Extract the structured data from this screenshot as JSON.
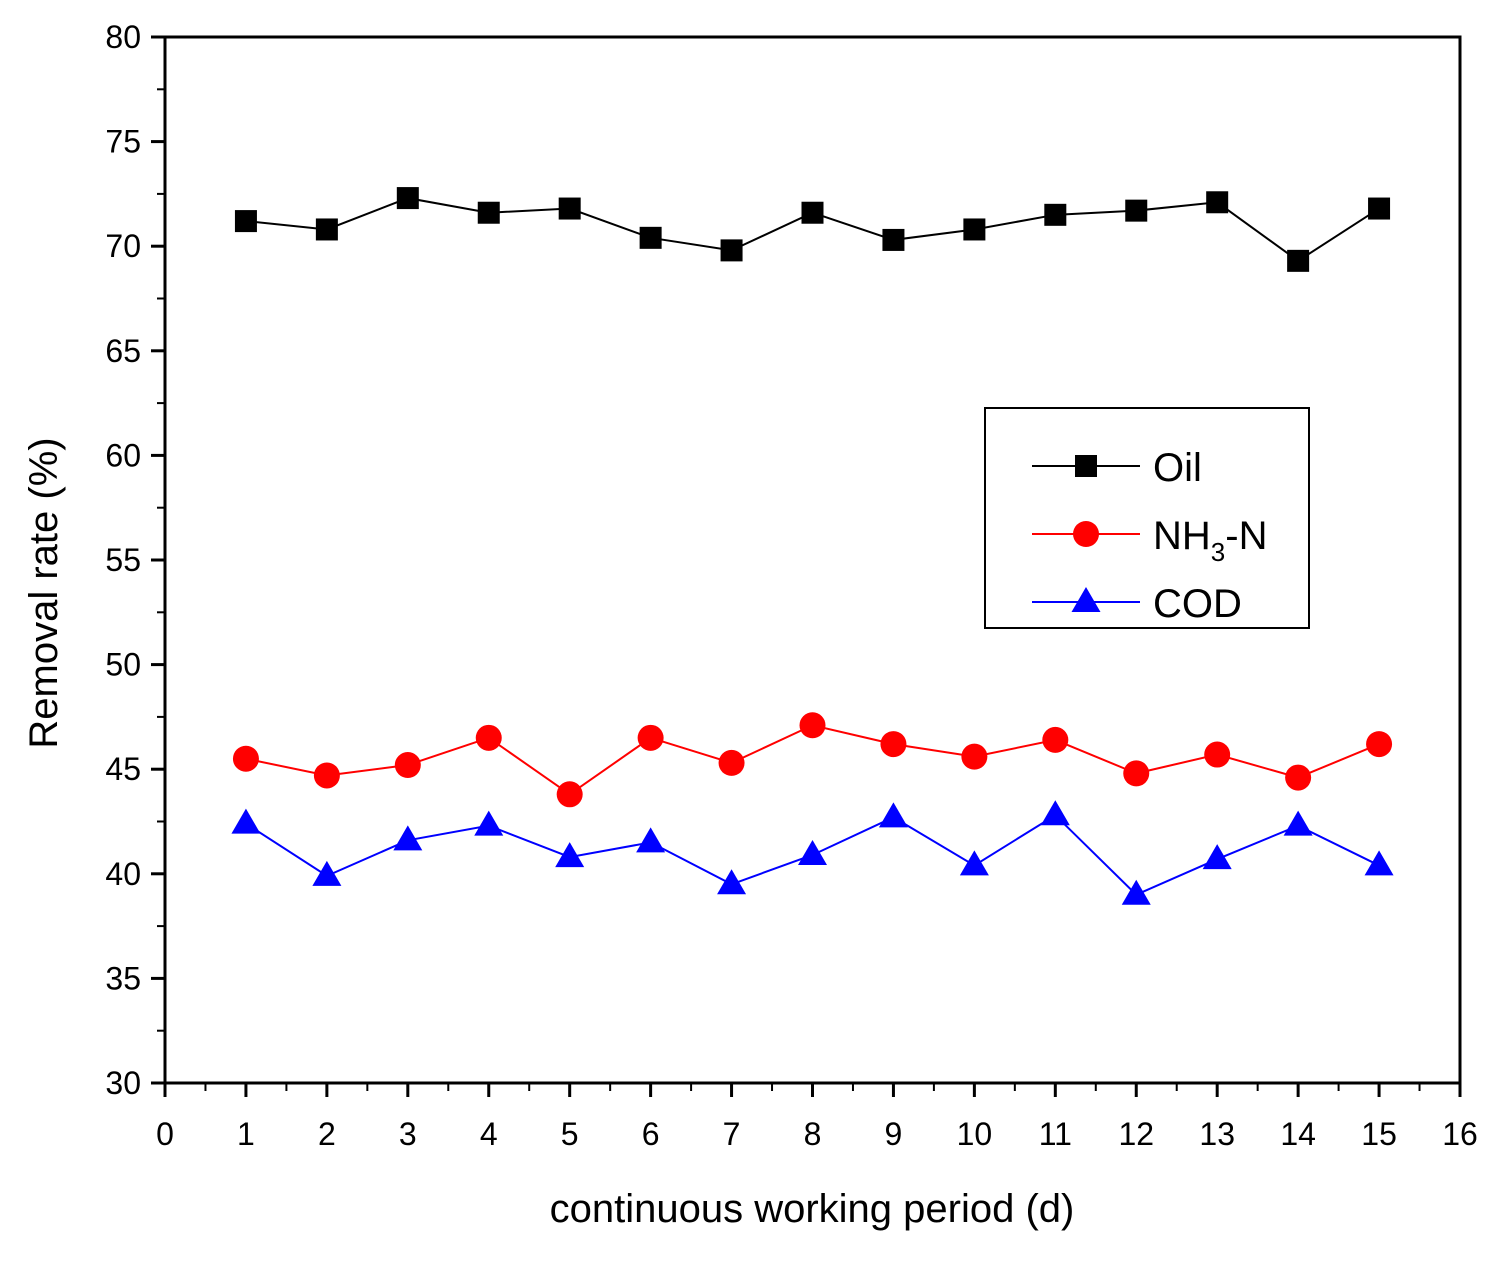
{
  "chart_data": {
    "type": "line",
    "title": "",
    "xlabel": "continuous working period (d)",
    "ylabel": "Removal rate (%)",
    "xlim": [
      0,
      16
    ],
    "ylim": [
      30,
      80
    ],
    "xticks": [
      "0",
      "1",
      "2",
      "3",
      "4",
      "5",
      "6",
      "7",
      "8",
      "9",
      "10",
      "11",
      "12",
      "13",
      "14",
      "15",
      "16"
    ],
    "yticks": [
      "30",
      "35",
      "40",
      "45",
      "50",
      "55",
      "60",
      "65",
      "70",
      "75",
      "80"
    ],
    "grid": false,
    "legend_position": "right-middle",
    "x": [
      1,
      2,
      3,
      4,
      5,
      6,
      7,
      8,
      9,
      10,
      11,
      12,
      13,
      14,
      15
    ],
    "series": [
      {
        "name": "Oil",
        "legend_main": "Oil",
        "legend_sub": "",
        "legend_tail": "",
        "marker": "square",
        "color": "#000000",
        "values": [
          71.2,
          70.8,
          72.3,
          71.6,
          71.8,
          70.4,
          69.8,
          71.6,
          70.3,
          70.8,
          71.5,
          71.7,
          72.1,
          69.3,
          71.8
        ]
      },
      {
        "name": "NH3-N",
        "legend_main": "NH",
        "legend_sub": "3",
        "legend_tail": "-N",
        "marker": "circle",
        "color": "#ff0000",
        "values": [
          45.5,
          44.7,
          45.2,
          46.5,
          43.8,
          46.5,
          45.3,
          47.1,
          46.2,
          45.6,
          46.4,
          44.8,
          45.7,
          44.6,
          46.2
        ]
      },
      {
        "name": "COD",
        "legend_main": "COD",
        "legend_sub": "",
        "legend_tail": "",
        "marker": "triangle",
        "color": "#0000ff",
        "values": [
          42.4,
          39.9,
          41.6,
          42.3,
          40.8,
          41.5,
          39.5,
          40.9,
          42.7,
          40.4,
          42.8,
          39.0,
          40.7,
          42.3,
          40.4
        ]
      }
    ]
  }
}
